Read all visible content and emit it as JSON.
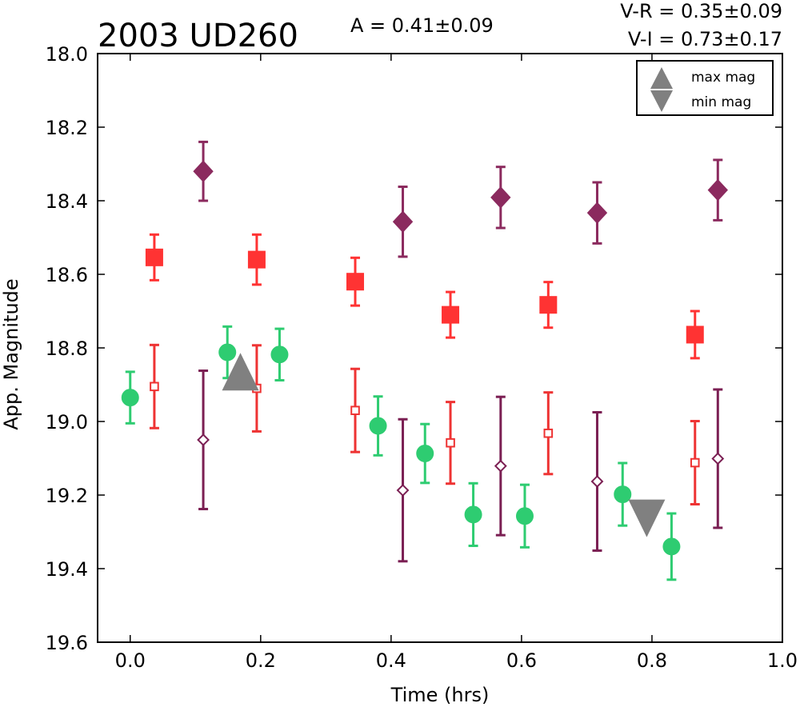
{
  "chart_data": {
    "type": "scatter",
    "title": "2003 UD260",
    "annotations": {
      "amplitude": "A  = 0.41±0.09",
      "v_r": "V-R = 0.35±0.09",
      "v_i": "V-I  = 0.73±0.17"
    },
    "xlabel": "Time (hrs)",
    "ylabel": "App. Magnitude",
    "xlim": [
      -0.05,
      1.0
    ],
    "ylim": [
      18.0,
      19.6
    ],
    "y_inverted": true,
    "xticks": [
      "0.0",
      "0.2",
      "0.4",
      "0.6",
      "0.8",
      "1.0"
    ],
    "xtick_values": [
      0.0,
      0.2,
      0.4,
      0.6,
      0.8,
      1.0
    ],
    "yticks": [
      "18.0",
      "18.2",
      "18.4",
      "18.6",
      "18.8",
      "19.0",
      "19.2",
      "19.4",
      "19.6"
    ],
    "ytick_values": [
      18.0,
      18.2,
      18.4,
      18.6,
      18.8,
      19.0,
      19.2,
      19.4,
      19.6
    ],
    "grid": false,
    "legend_position": "top-right",
    "legend": [
      {
        "label": "max mag",
        "marker": "triangle-up",
        "color": "#808080"
      },
      {
        "label": "min mag",
        "marker": "triangle-down",
        "color": "#808080"
      }
    ],
    "series": [
      {
        "marker": "circle",
        "filled": true,
        "color": "#2ecc71",
        "points": [
          {
            "x": 0.0,
            "y": 18.935,
            "err": 0.07
          },
          {
            "x": 0.149,
            "y": 18.812,
            "err": 0.07
          },
          {
            "x": 0.229,
            "y": 18.818,
            "err": 0.07
          },
          {
            "x": 0.38,
            "y": 19.012,
            "err": 0.08
          },
          {
            "x": 0.452,
            "y": 19.087,
            "err": 0.08
          },
          {
            "x": 0.526,
            "y": 19.253,
            "err": 0.085
          },
          {
            "x": 0.605,
            "y": 19.257,
            "err": 0.085
          },
          {
            "x": 0.755,
            "y": 19.198,
            "err": 0.085
          },
          {
            "x": 0.83,
            "y": 19.34,
            "err": 0.09
          }
        ]
      },
      {
        "marker": "square",
        "filled": true,
        "color": "#ff3333",
        "points": [
          {
            "x": 0.037,
            "y": 18.554,
            "err": 0.062
          },
          {
            "x": 0.194,
            "y": 18.56,
            "err": 0.068
          },
          {
            "x": 0.345,
            "y": 18.62,
            "err": 0.065
          },
          {
            "x": 0.491,
            "y": 18.71,
            "err": 0.062
          },
          {
            "x": 0.641,
            "y": 18.683,
            "err": 0.062
          },
          {
            "x": 0.866,
            "y": 18.764,
            "err": 0.064
          }
        ]
      },
      {
        "marker": "square",
        "filled": false,
        "color": "#ee3333",
        "points": [
          {
            "x": 0.037,
            "y": 18.905,
            "err": 0.113
          },
          {
            "x": 0.194,
            "y": 18.91,
            "err": 0.117
          },
          {
            "x": 0.345,
            "y": 18.97,
            "err": 0.113
          },
          {
            "x": 0.491,
            "y": 19.058,
            "err": 0.111
          },
          {
            "x": 0.641,
            "y": 19.032,
            "err": 0.111
          },
          {
            "x": 0.866,
            "y": 19.112,
            "err": 0.113
          }
        ]
      },
      {
        "marker": "diamond",
        "filled": true,
        "color": "#8b2a5e",
        "points": [
          {
            "x": 0.112,
            "y": 18.32,
            "err": 0.08
          },
          {
            "x": 0.418,
            "y": 18.457,
            "err": 0.095
          },
          {
            "x": 0.568,
            "y": 18.391,
            "err": 0.083
          },
          {
            "x": 0.716,
            "y": 18.433,
            "err": 0.083
          },
          {
            "x": 0.901,
            "y": 18.371,
            "err": 0.082
          }
        ]
      },
      {
        "marker": "diamond",
        "filled": false,
        "color": "#7b1f53",
        "points": [
          {
            "x": 0.112,
            "y": 19.05,
            "err": 0.188
          },
          {
            "x": 0.418,
            "y": 19.187,
            "err": 0.193
          },
          {
            "x": 0.568,
            "y": 19.121,
            "err": 0.188
          },
          {
            "x": 0.716,
            "y": 19.163,
            "err": 0.188
          },
          {
            "x": 0.901,
            "y": 19.101,
            "err": 0.188
          }
        ]
      },
      {
        "marker": "triangle-up",
        "filled": true,
        "color": "#808080",
        "name": "max mag",
        "points": [
          {
            "x": 0.169,
            "y": 18.868
          }
        ]
      },
      {
        "marker": "triangle-down",
        "filled": true,
        "color": "#808080",
        "name": "min mag",
        "points": [
          {
            "x": 0.792,
            "y": 19.26
          }
        ]
      }
    ]
  }
}
